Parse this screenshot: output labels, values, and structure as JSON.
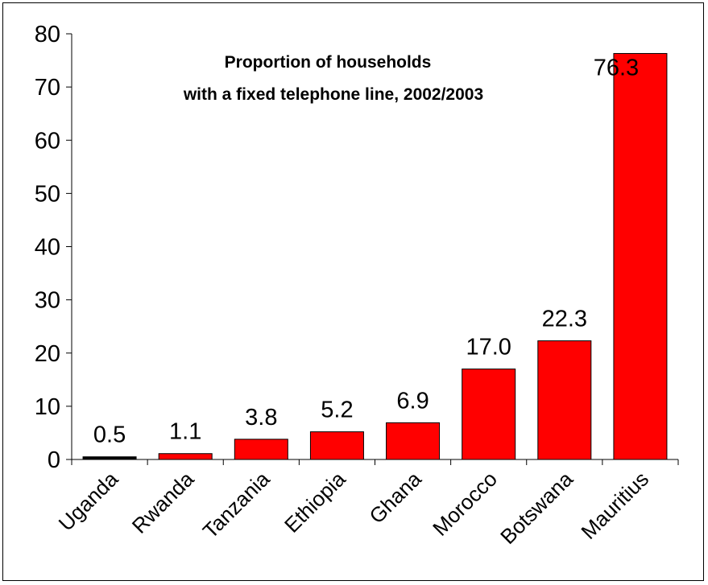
{
  "chart_data": {
    "type": "bar",
    "title_lines": [
      "Proportion of households",
      "with a fixed telephone line, 2002/2003"
    ],
    "categories": [
      "Uganda",
      "Rwanda",
      "Tanzania",
      "Ethiopia",
      "Ghana",
      "Morocco",
      "Botswana",
      "Mauritius"
    ],
    "values": [
      0.5,
      1.1,
      3.8,
      5.2,
      6.9,
      17.0,
      22.3,
      76.3
    ],
    "data_labels": [
      "0.5",
      "1.1",
      "3.8",
      "5.2",
      "6.9",
      "17.0",
      "22.3",
      "76.3"
    ],
    "ylim": [
      0,
      80
    ],
    "yticks": [
      0,
      10,
      20,
      30,
      40,
      50,
      60,
      70,
      80
    ],
    "bar_color": "#ff0000",
    "first_bar_color": "#000000",
    "grid": false,
    "legend": "none"
  }
}
